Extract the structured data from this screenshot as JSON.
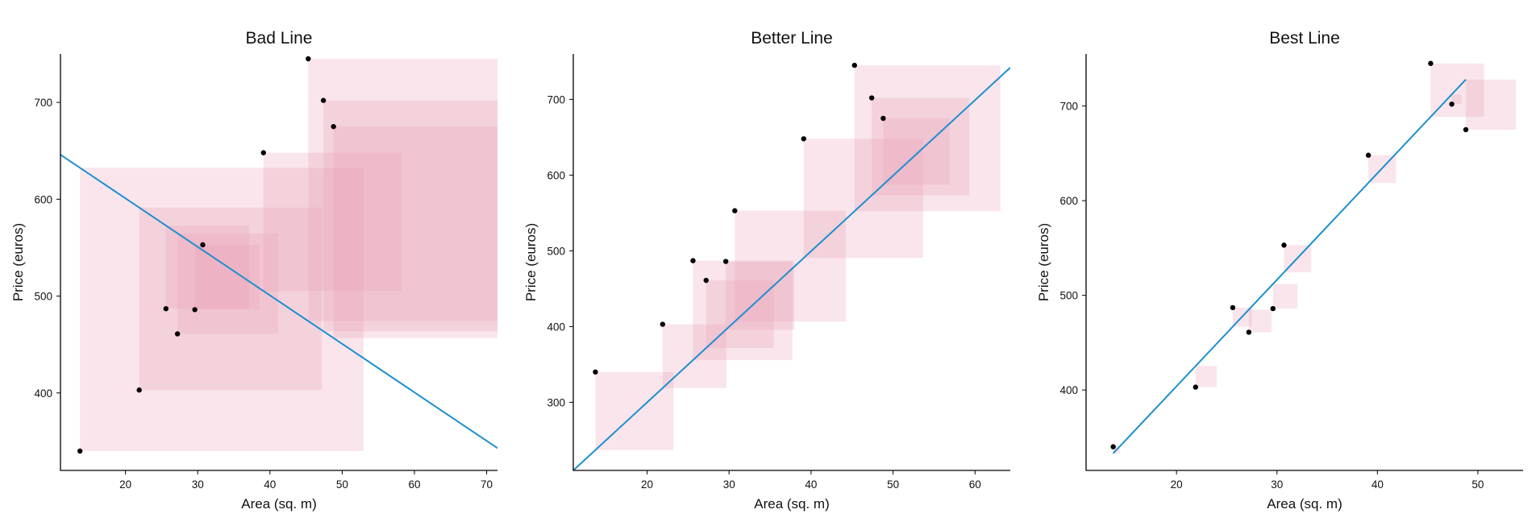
{
  "colors": {
    "square": "#e8a3b6",
    "line": "#1d8fcf",
    "point": "#000000",
    "axis": "#000000"
  },
  "chart_data": [
    {
      "type": "scatter",
      "title": "Bad Line",
      "xlabel": "Area (sq. m)",
      "ylabel": "Price (euros)",
      "xlim": [
        11,
        71.5
      ],
      "ylim": [
        320,
        750
      ],
      "xticks": [
        20,
        30,
        40,
        50,
        60,
        70
      ],
      "yticks": [
        400,
        500,
        600,
        700
      ],
      "grid": false,
      "points": [
        {
          "x": 13.7,
          "y": 340
        },
        {
          "x": 21.9,
          "y": 403
        },
        {
          "x": 25.6,
          "y": 487
        },
        {
          "x": 27.2,
          "y": 461
        },
        {
          "x": 29.6,
          "y": 486
        },
        {
          "x": 30.7,
          "y": 553
        },
        {
          "x": 39.1,
          "y": 648
        },
        {
          "x": 45.3,
          "y": 745
        },
        {
          "x": 47.4,
          "y": 702
        },
        {
          "x": 48.8,
          "y": 675
        }
      ],
      "fit_line": {
        "x": [
          11,
          71.5
        ],
        "y": [
          646,
          343
        ]
      },
      "show_squares": true
    },
    {
      "type": "scatter",
      "title": "Better Line",
      "xlabel": "Area (sq. m)",
      "ylabel": "Price (euros)",
      "xlim": [
        11,
        64.3
      ],
      "ylim": [
        210,
        760
      ],
      "xticks": [
        20,
        30,
        40,
        50,
        60
      ],
      "yticks": [
        300,
        400,
        500,
        600,
        700
      ],
      "grid": false,
      "points": [
        {
          "x": 13.7,
          "y": 340
        },
        {
          "x": 21.9,
          "y": 403
        },
        {
          "x": 25.6,
          "y": 487
        },
        {
          "x": 27.2,
          "y": 461
        },
        {
          "x": 29.6,
          "y": 486
        },
        {
          "x": 30.7,
          "y": 553
        },
        {
          "x": 39.1,
          "y": 648
        },
        {
          "x": 45.3,
          "y": 745
        },
        {
          "x": 47.4,
          "y": 702
        },
        {
          "x": 48.8,
          "y": 675
        }
      ],
      "fit_line": {
        "x": [
          11,
          64.3
        ],
        "y": [
          210,
          742
        ]
      },
      "show_squares": true
    },
    {
      "type": "scatter",
      "title": "Best Line",
      "xlabel": "Area (sq. m)",
      "ylabel": "Price (euros)",
      "xlim": [
        11,
        54.5
      ],
      "ylim": [
        315,
        755
      ],
      "xticks": [
        20,
        30,
        40,
        50
      ],
      "yticks": [
        400,
        500,
        600,
        700
      ],
      "grid": false,
      "points": [
        {
          "x": 13.7,
          "y": 340
        },
        {
          "x": 21.9,
          "y": 403
        },
        {
          "x": 25.6,
          "y": 487
        },
        {
          "x": 27.2,
          "y": 461
        },
        {
          "x": 29.6,
          "y": 486
        },
        {
          "x": 30.7,
          "y": 553
        },
        {
          "x": 39.1,
          "y": 648
        },
        {
          "x": 45.3,
          "y": 745
        },
        {
          "x": 47.4,
          "y": 702
        },
        {
          "x": 48.8,
          "y": 675
        }
      ],
      "fit_line": {
        "x": [
          13.7,
          48.8
        ],
        "y": [
          333,
          728
        ]
      },
      "show_squares": true
    }
  ]
}
